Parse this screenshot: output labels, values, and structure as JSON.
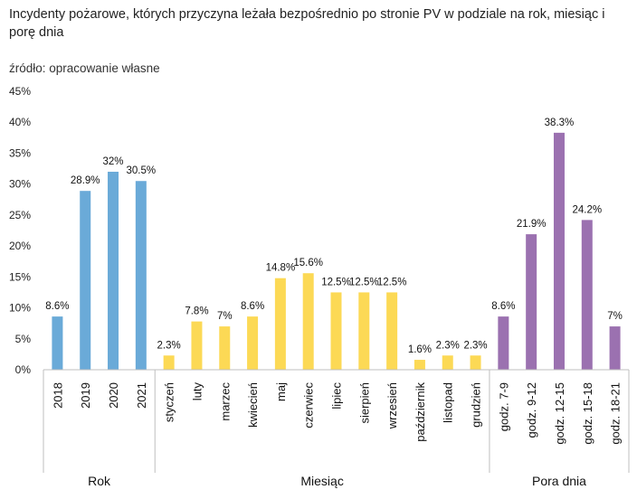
{
  "chart_data": {
    "type": "bar",
    "title": "Incydenty pożarowe, których przyczyna leżała bezpośrednio po stronie PV w podziale na rok, miesiąc i porę dnia",
    "subtitle": "źródło: opracowanie własne",
    "ylim": [
      0,
      45
    ],
    "yticks": [
      "0%",
      "5%",
      "10%",
      "15%",
      "20%",
      "25%",
      "30%",
      "35%",
      "40%",
      "45%"
    ],
    "grid": false,
    "groups": [
      {
        "name": "Rok",
        "color": "#6aaad8",
        "categories": [
          "2018",
          "2019",
          "2020",
          "2021"
        ],
        "values": [
          8.6,
          28.9,
          32,
          30.5
        ],
        "labels": [
          "8.6%",
          "28.9%",
          "32%",
          "30.5%"
        ]
      },
      {
        "name": "Miesiąc",
        "color": "#fcd955",
        "categories": [
          "styczeń",
          "luty",
          "marzec",
          "kwiecień",
          "maj",
          "czerwiec",
          "lipiec",
          "sierpień",
          "wrzesień",
          "październik",
          "listopad",
          "grudzień"
        ],
        "values": [
          2.3,
          7.8,
          7,
          8.6,
          14.8,
          15.6,
          12.5,
          12.5,
          12.5,
          1.6,
          2.3,
          2.3
        ],
        "labels": [
          "2.3%",
          "7.8%",
          "7%",
          "8.6%",
          "14.8%",
          "15.6%",
          "12.5%",
          "12.5%",
          "12.5%",
          "1.6%",
          "2.3%",
          "2.3%"
        ]
      },
      {
        "name": "Pora dnia",
        "color": "#9b71b0",
        "categories": [
          "godz. 7-9",
          "godz. 9-12",
          "godz. 12-15",
          "godz. 15-18",
          "godz. 18-21"
        ],
        "values": [
          8.6,
          21.9,
          38.3,
          24.2,
          7
        ],
        "labels": [
          "8.6%",
          "21.9%",
          "38.3%",
          "24.2%",
          "7%"
        ]
      }
    ]
  }
}
